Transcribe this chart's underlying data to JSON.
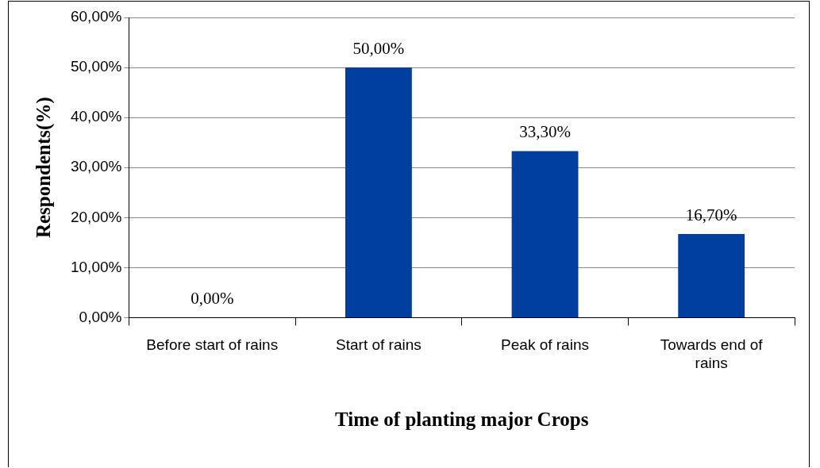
{
  "chart_data": {
    "type": "bar",
    "xlabel": "Time of planting major Crops",
    "ylabel": "Respondents(%)",
    "categories": [
      "Before start of rains",
      "Start of rains",
      "Peak of rains",
      "Towards end of rains"
    ],
    "values": [
      0,
      50,
      33.3,
      16.7
    ],
    "value_labels": [
      "0,00%",
      "50,00%",
      "33,30%",
      "16,70%"
    ],
    "color": "#003f9f",
    "ylim": [
      0,
      60
    ],
    "yticks": [
      {
        "value": 0,
        "label": "0,00%"
      },
      {
        "value": 10,
        "label": "10,00%"
      },
      {
        "value": 20,
        "label": "20,00%"
      },
      {
        "value": 30,
        "label": "30,00%"
      },
      {
        "value": 40,
        "label": "40,00%"
      },
      {
        "value": 50,
        "label": "50,00%"
      },
      {
        "value": 60,
        "label": "60,00%"
      }
    ],
    "grid": "y",
    "legend": false
  }
}
